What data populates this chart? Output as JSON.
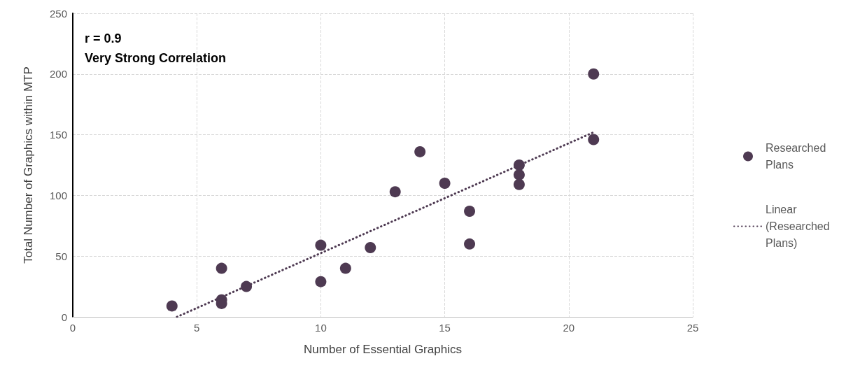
{
  "chart_data": {
    "type": "scatter",
    "xlabel": "Number of Essential Graphics",
    "ylabel": "Total Number of Graphics within MTP",
    "annotations": [
      "r = 0.9",
      "Very Strong Correlation"
    ],
    "series": [
      {
        "name": "Researched Plans",
        "type": "scatter",
        "color": "#4e3a52",
        "marker": "circle",
        "x": [
          4,
          6,
          6,
          6,
          7,
          10,
          10,
          11,
          12,
          13,
          14,
          15,
          16,
          16,
          18,
          18,
          18,
          21,
          21
        ],
        "values": [
          9,
          40,
          14,
          11,
          25,
          59,
          29,
          40,
          57,
          103,
          136,
          110,
          87,
          60,
          125,
          117,
          109,
          200,
          146
        ]
      },
      {
        "name": "Linear (Researched Plans)",
        "type": "line",
        "color": "#4e3a52",
        "line_style": "dotted",
        "marker": "none",
        "x": [
          4.2,
          21
        ],
        "values": [
          0,
          152
        ]
      }
    ],
    "xlim": [
      0,
      25
    ],
    "xticks": [
      0,
      5,
      10,
      15,
      20,
      25
    ],
    "ylim": [
      0,
      250
    ],
    "yticks": [
      0,
      50,
      100,
      150,
      200,
      250
    ],
    "grid": true,
    "legend": "right"
  }
}
